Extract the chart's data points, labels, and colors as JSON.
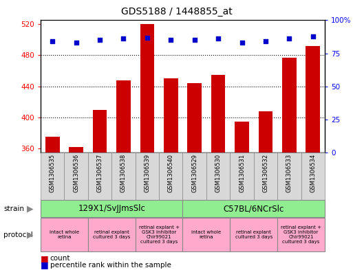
{
  "title": "GDS5188 / 1448855_at",
  "samples": [
    "GSM1306535",
    "GSM1306536",
    "GSM1306537",
    "GSM1306538",
    "GSM1306539",
    "GSM1306540",
    "GSM1306529",
    "GSM1306530",
    "GSM1306531",
    "GSM1306532",
    "GSM1306533",
    "GSM1306534"
  ],
  "counts": [
    375,
    362,
    410,
    448,
    520,
    450,
    444,
    455,
    395,
    408,
    477,
    492
  ],
  "percentiles": [
    84,
    83,
    85,
    86,
    87,
    85,
    85,
    86,
    83,
    84,
    86,
    88
  ],
  "ylim_left": [
    355,
    525
  ],
  "ylim_right": [
    0,
    100
  ],
  "yticks_left": [
    360,
    400,
    440,
    480,
    520
  ],
  "yticks_right": [
    0,
    25,
    50,
    75,
    100
  ],
  "bar_color": "#cc0000",
  "dot_color": "#0000cc",
  "strain_labels": [
    "129X1/SvJJmsSlc",
    "C57BL/6NCrSlc"
  ],
  "strain_ranges": [
    [
      0,
      5
    ],
    [
      6,
      11
    ]
  ],
  "strain_color": "#90ee90",
  "protocol_labels": [
    "intact whole\nretina",
    "retinal explant\ncultured 3 days",
    "retinal explant +\nGSK3 inhibitor\nChir99021\ncultured 3 days",
    "intact whole\nretina",
    "retinal explant\ncultured 3 days",
    "retinal explant +\nGSK3 inhibitor\nChir99021\ncultured 3 days"
  ],
  "protocol_ranges": [
    [
      0,
      1
    ],
    [
      2,
      3
    ],
    [
      4,
      5
    ],
    [
      6,
      7
    ],
    [
      8,
      9
    ],
    [
      10,
      11
    ]
  ],
  "protocol_color": "#ffaacc",
  "grid_color": "#000000",
  "bg_color": "#ffffff",
  "figsize": [
    5.13,
    3.93
  ],
  "dpi": 100
}
